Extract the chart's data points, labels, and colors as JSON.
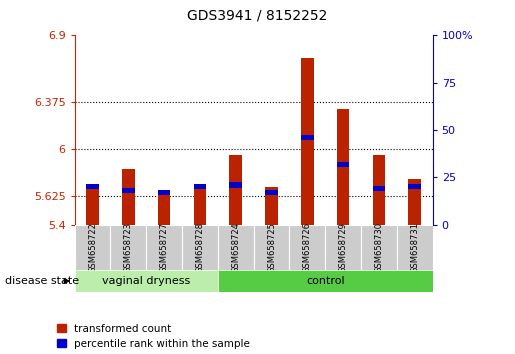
{
  "title": "GDS3941 / 8152252",
  "samples": [
    "GSM658722",
    "GSM658723",
    "GSM658727",
    "GSM658728",
    "GSM658724",
    "GSM658725",
    "GSM658726",
    "GSM658729",
    "GSM658730",
    "GSM658731"
  ],
  "red_values": [
    5.68,
    5.84,
    5.66,
    5.72,
    5.95,
    5.7,
    6.72,
    6.32,
    5.95,
    5.76
  ],
  "blue_pct": [
    20,
    18,
    17,
    20,
    21,
    17,
    46,
    32,
    19,
    20
  ],
  "ylim_left": [
    5.4,
    6.9
  ],
  "yticks_left": [
    5.4,
    5.625,
    6.0,
    6.375,
    6.9
  ],
  "ylim_right": [
    0,
    100
  ],
  "yticks_right": [
    0,
    25,
    50,
    75,
    100
  ],
  "ytick_labels_right": [
    "0",
    "25",
    "50",
    "75",
    "100%"
  ],
  "group1_label": "vaginal dryness",
  "group2_label": "control",
  "group1_count": 4,
  "group2_count": 6,
  "disease_state_label": "disease state",
  "legend_red": "transformed count",
  "legend_blue": "percentile rank within the sample",
  "bar_color_red": "#bb2200",
  "bar_color_blue": "#0000cc",
  "group1_bg": "#bbeeaa",
  "group2_bg": "#55cc44",
  "xticklabel_bg": "#cccccc",
  "bar_width": 0.35,
  "hline_values": [
    5.625,
    6.0,
    6.375
  ],
  "ytick_label_strs": [
    "5.4",
    "5.625",
    "6",
    "6.375",
    "6.9"
  ]
}
